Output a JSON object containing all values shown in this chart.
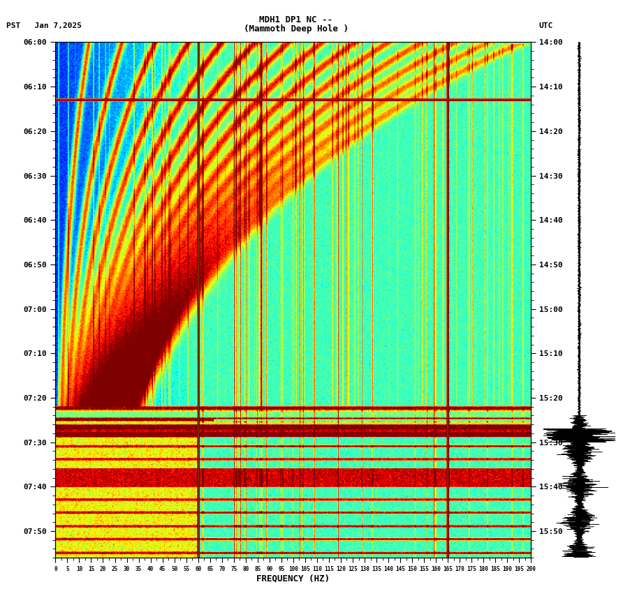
{
  "title_line1": "MDH1 DP1 NC --",
  "title_line2": "(Mammoth Deep Hole )",
  "left_label": "PST   Jan 7,2025",
  "right_label": "UTC",
  "xlabel": "FREQUENCY (HZ)",
  "freq_min": 0,
  "freq_max": 200,
  "pst_ticks": [
    "06:00",
    "06:10",
    "06:20",
    "06:30",
    "06:40",
    "06:50",
    "07:00",
    "07:10",
    "07:20",
    "07:30",
    "07:40",
    "07:50"
  ],
  "utc_ticks": [
    "14:00",
    "14:10",
    "14:20",
    "14:30",
    "14:40",
    "14:50",
    "15:00",
    "15:10",
    "15:20",
    "15:30",
    "15:40",
    "15:50"
  ],
  "freq_ticks": [
    0,
    5,
    10,
    15,
    20,
    25,
    30,
    35,
    40,
    45,
    50,
    55,
    60,
    65,
    70,
    75,
    80,
    85,
    90,
    95,
    100,
    105,
    110,
    115,
    120,
    125,
    130,
    135,
    140,
    145,
    150,
    155,
    160,
    165,
    170,
    175,
    180,
    185,
    190,
    195,
    200
  ],
  "vertical_lines_freq": [
    60,
    165
  ],
  "colormap": "jet",
  "background_color": "#ffffff",
  "fig_width": 9.02,
  "fig_height": 8.64,
  "dpi": 100,
  "total_minutes": 116
}
